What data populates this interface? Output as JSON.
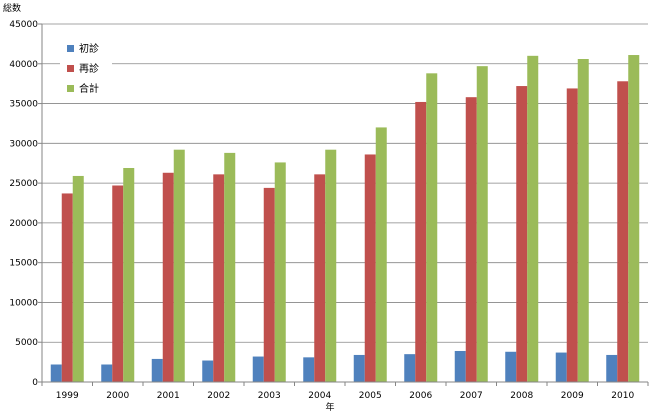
{
  "chart_data": {
    "type": "bar",
    "title": "",
    "xlabel": "年",
    "ylabel": "総数",
    "categories": [
      "1999",
      "2000",
      "2001",
      "2002",
      "2003",
      "2004",
      "2005",
      "2006",
      "2007",
      "2008",
      "2009",
      "2010"
    ],
    "series": [
      {
        "name": "初診",
        "color": "#4F81BD",
        "values": [
          2200,
          2200,
          2900,
          2700,
          3200,
          3100,
          3400,
          3500,
          3900,
          3800,
          3700,
          3400
        ]
      },
      {
        "name": "再診",
        "color": "#C0504D",
        "values": [
          23700,
          24700,
          26300,
          26100,
          24400,
          26100,
          28600,
          35200,
          35800,
          37200,
          36900,
          37800
        ]
      },
      {
        "name": "合計",
        "color": "#9BBB59",
        "values": [
          25900,
          26900,
          29200,
          28800,
          27600,
          29200,
          32000,
          38800,
          39700,
          41000,
          40600,
          41100
        ]
      }
    ],
    "ylim": [
      0,
      45000
    ],
    "yticks": [
      0,
      5000,
      10000,
      15000,
      20000,
      25000,
      30000,
      35000,
      40000,
      45000
    ],
    "grid": true,
    "legend_position": "top-left"
  }
}
